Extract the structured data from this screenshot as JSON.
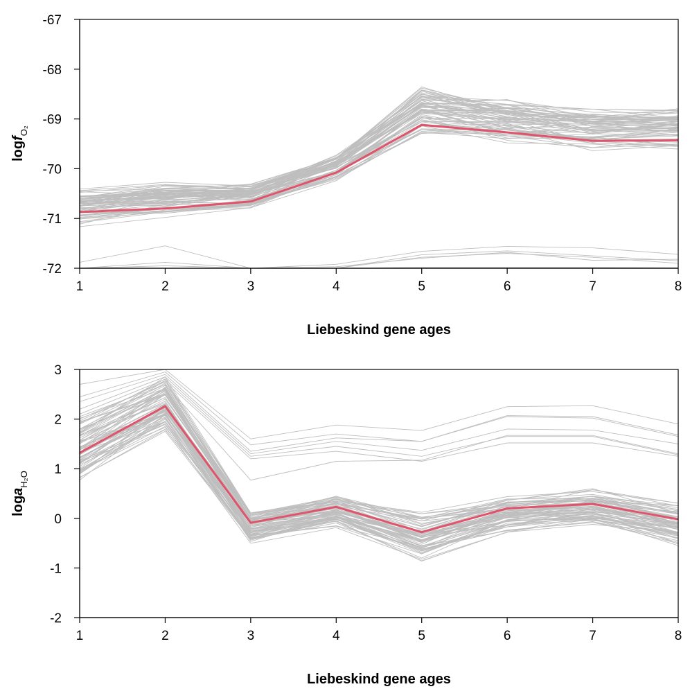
{
  "chart_data": [
    {
      "type": "line",
      "xlabel": "Liebeskind gene ages",
      "ylabel": {
        "main": "log",
        "italic": "f",
        "subscript": "O₂"
      },
      "x": [
        1,
        2,
        3,
        4,
        5,
        6,
        7,
        8
      ],
      "xticks": [
        "1",
        "2",
        "3",
        "4",
        "5",
        "6",
        "7",
        "8"
      ],
      "ylim": [
        -72,
        -67
      ],
      "yticks": [
        -72,
        -71,
        -70,
        -69,
        -68,
        -67
      ],
      "ytick_labels": [
        "-72",
        "-71",
        "-70",
        "-69",
        "-68",
        "-67"
      ],
      "grid": false,
      "colors": {
        "background_lines": "#bebebe",
        "highlight": "#df536b"
      },
      "highlight": {
        "values": [
          -70.87,
          -70.8,
          -70.66,
          -70.08,
          -69.12,
          -69.27,
          -69.44,
          -69.43
        ]
      },
      "background_band": {
        "base": [
          -70.78,
          -70.62,
          -70.56,
          -69.98,
          -68.88,
          -69.05,
          -69.22,
          -69.18
        ],
        "spread": [
          0.48,
          0.45,
          0.36,
          0.34,
          0.72,
          0.62,
          0.56,
          0.58
        ],
        "count": 70
      },
      "background_low": [
        [
          -71.88,
          -71.55,
          -72.0,
          -71.92,
          -71.66,
          -71.56,
          -71.59,
          -71.72
        ],
        [
          -72.0,
          -71.88,
          -72.0,
          -72.0,
          -71.73,
          -71.65,
          -71.75,
          -71.85
        ],
        [
          -72.0,
          -71.95,
          -72.0,
          -72.0,
          -71.78,
          -71.7,
          -71.78,
          -71.9
        ],
        [
          -72.0,
          -72.0,
          -72.0,
          -71.97,
          -71.8,
          -71.68,
          -71.84,
          -71.82
        ],
        [
          -72.0,
          -72.0,
          -72.0,
          -72.0,
          -71.98,
          -71.98,
          -71.98,
          -71.99
        ]
      ]
    },
    {
      "type": "line",
      "xlabel": "Liebeskind gene ages",
      "ylabel": {
        "main": "log",
        "italic": "a",
        "subscript": "H₂O"
      },
      "x": [
        1,
        2,
        3,
        4,
        5,
        6,
        7,
        8
      ],
      "xticks": [
        "1",
        "2",
        "3",
        "4",
        "5",
        "6",
        "7",
        "8"
      ],
      "ylim": [
        -2,
        3
      ],
      "yticks": [
        -2,
        -1,
        0,
        1,
        2,
        3
      ],
      "ytick_labels": [
        "-2",
        "-1",
        "0",
        "1",
        "2",
        "3"
      ],
      "grid": false,
      "colors": {
        "background_lines": "#bebebe",
        "highlight": "#df536b"
      },
      "highlight": {
        "values": [
          1.32,
          2.26,
          -0.09,
          0.23,
          -0.28,
          0.2,
          0.29,
          -0.02
        ]
      },
      "background_band": {
        "base": [
          1.4,
          2.3,
          -0.16,
          0.16,
          -0.36,
          0.08,
          0.22,
          -0.1
        ],
        "spread": [
          0.9,
          0.75,
          0.45,
          0.45,
          0.72,
          0.5,
          0.5,
          0.6
        ],
        "count": 70
      },
      "background_high": [
        [
          2.7,
          3.0,
          1.6,
          1.88,
          1.77,
          2.25,
          2.27,
          1.9
        ],
        [
          2.45,
          2.95,
          1.48,
          1.7,
          1.55,
          2.07,
          2.05,
          1.68
        ],
        [
          2.35,
          2.9,
          1.35,
          1.62,
          1.55,
          2.05,
          2.02,
          1.65
        ],
        [
          2.2,
          2.85,
          1.3,
          1.55,
          1.37,
          1.8,
          1.78,
          1.5
        ],
        [
          2.1,
          2.8,
          1.25,
          1.45,
          1.25,
          1.65,
          1.65,
          1.28
        ],
        [
          2.0,
          2.75,
          1.2,
          1.35,
          1.15,
          1.52,
          1.52,
          1.25
        ],
        [
          1.9,
          2.7,
          0.77,
          1.15,
          1.17,
          1.67,
          1.67,
          1.3
        ]
      ]
    }
  ]
}
